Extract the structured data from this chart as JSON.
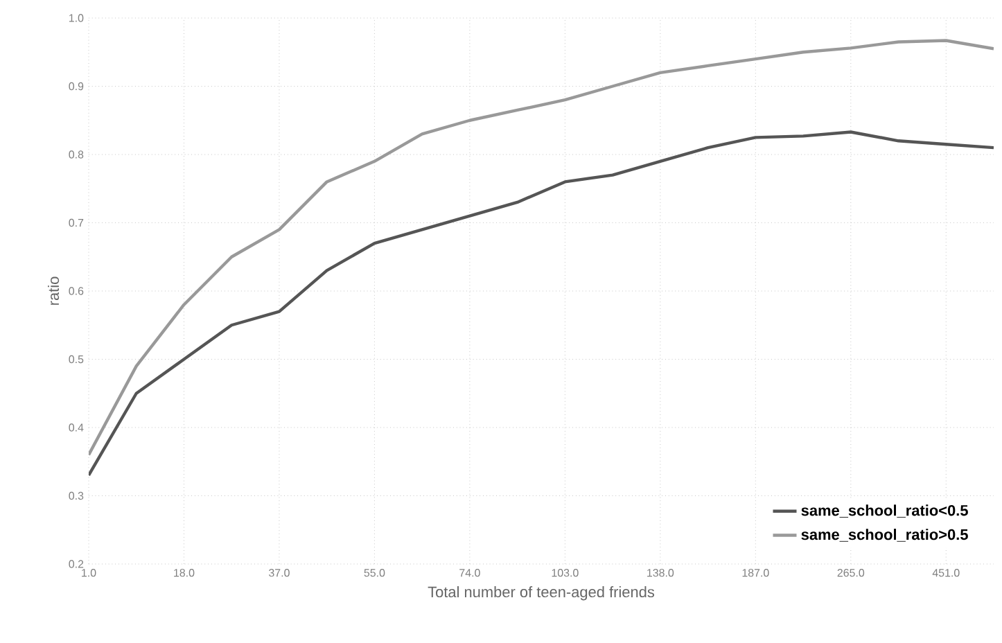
{
  "chart_data": {
    "type": "line",
    "xlabel": "Total number of teen-aged friends",
    "ylabel": "ratio",
    "categories": [
      "1.0",
      null,
      "18.0",
      null,
      "37.0",
      null,
      "55.0",
      null,
      "74.0",
      null,
      "103.0",
      null,
      "138.0",
      null,
      "187.0",
      null,
      "265.0",
      null,
      "451.0",
      null
    ],
    "ylim": [
      0.2,
      1.0
    ],
    "yticks": [
      {
        "value": 0.2,
        "label": "0.2"
      },
      {
        "value": 0.3,
        "label": "0.3"
      },
      {
        "value": 0.4,
        "label": "0.4"
      },
      {
        "value": 0.5,
        "label": "0.5"
      },
      {
        "value": 0.6,
        "label": "0.6"
      },
      {
        "value": 0.7,
        "label": "0.7"
      },
      {
        "value": 0.8,
        "label": "0.8"
      },
      {
        "value": 0.9,
        "label": "0.9"
      },
      {
        "value": 1.0,
        "label": "1.0"
      }
    ],
    "grid": true,
    "legend": "bottom right",
    "marker": "none",
    "line_style": "solid",
    "series": [
      {
        "name": "same_school_ratio<0.5",
        "color": "#555555",
        "values": [
          0.33,
          0.45,
          0.5,
          0.55,
          0.57,
          0.63,
          0.67,
          0.69,
          0.71,
          0.73,
          0.76,
          0.77,
          0.79,
          0.81,
          0.825,
          0.827,
          0.833,
          0.82,
          0.815,
          0.81
        ]
      },
      {
        "name": "same_school_ratio>0.5",
        "color": "#999999",
        "values": [
          0.36,
          0.49,
          0.58,
          0.65,
          0.69,
          0.76,
          0.79,
          0.83,
          0.85,
          0.865,
          0.88,
          0.9,
          0.92,
          0.93,
          0.94,
          0.95,
          0.956,
          0.965,
          0.967,
          0.955
        ]
      }
    ]
  }
}
